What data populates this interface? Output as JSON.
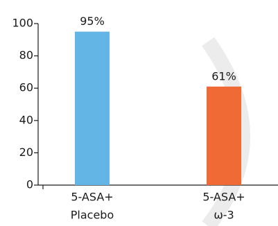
{
  "chart_data": {
    "type": "bar",
    "categories": [
      [
        "5-ASA+",
        "Placebo"
      ],
      [
        "5-ASA+",
        "ω-3"
      ]
    ],
    "values": [
      95,
      61
    ],
    "value_labels": [
      "95%",
      "61%"
    ],
    "colors": [
      "#62b5e5",
      "#f06a35"
    ],
    "ylim": [
      0,
      100
    ],
    "yticks": [
      0,
      20,
      40,
      60,
      80,
      100
    ]
  }
}
